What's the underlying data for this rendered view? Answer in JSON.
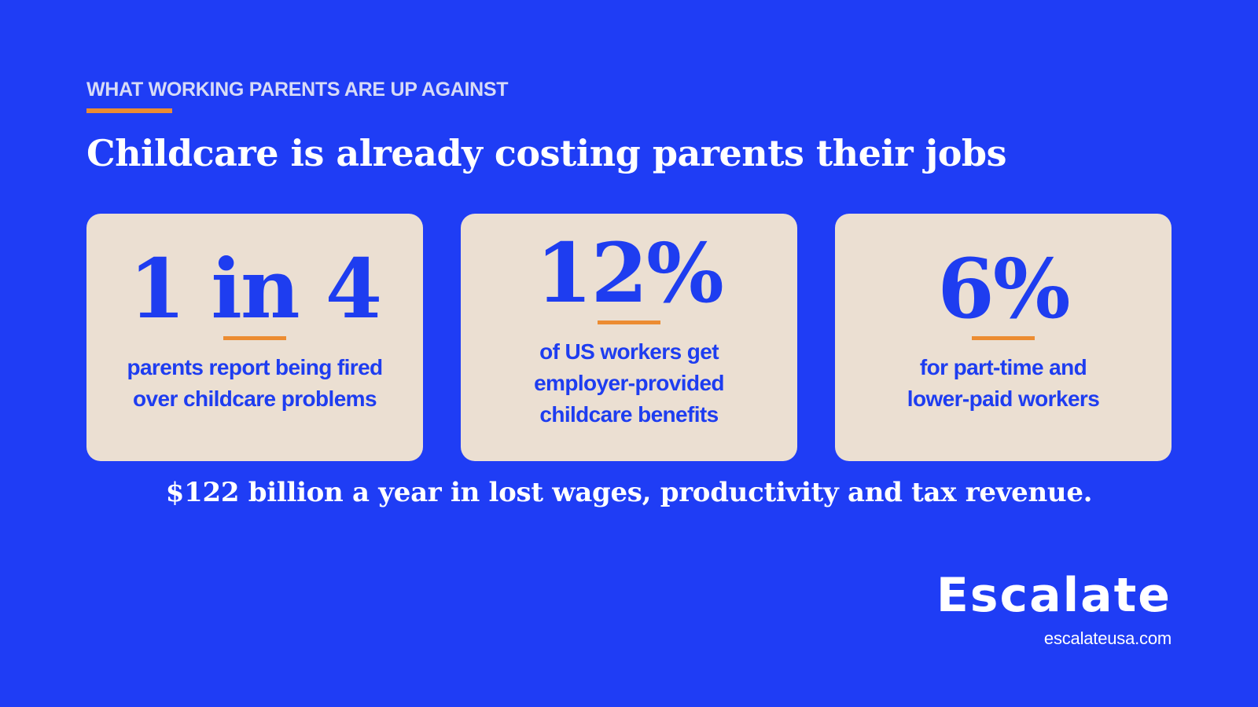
{
  "colors": {
    "background": "#1F3DF5",
    "card_background": "#EBDFD2",
    "accent_orange": "#EC8C32",
    "stat_blue": "#1E3DF0",
    "eyebrow_text": "#D7DBF6",
    "white": "#FFFFFF"
  },
  "header": {
    "eyebrow": "WHAT WORKING PARENTS ARE UP AGAINST",
    "title": "Childcare is already costing parents their jobs"
  },
  "stats": [
    {
      "value": "1 in 4",
      "text_lines": [
        "parents report being fired",
        "over childcare problems"
      ]
    },
    {
      "value": "12%",
      "text_lines": [
        "of US workers get",
        "employer-provided",
        "childcare benefits"
      ]
    },
    {
      "value": "6%",
      "text_lines": [
        "for part-time and",
        "lower-paid workers"
      ]
    }
  ],
  "summary": "$122 billion a year in lost wages, productivity and tax revenue.",
  "brand": {
    "name": "Escalate",
    "url": "escalateusa.com"
  }
}
